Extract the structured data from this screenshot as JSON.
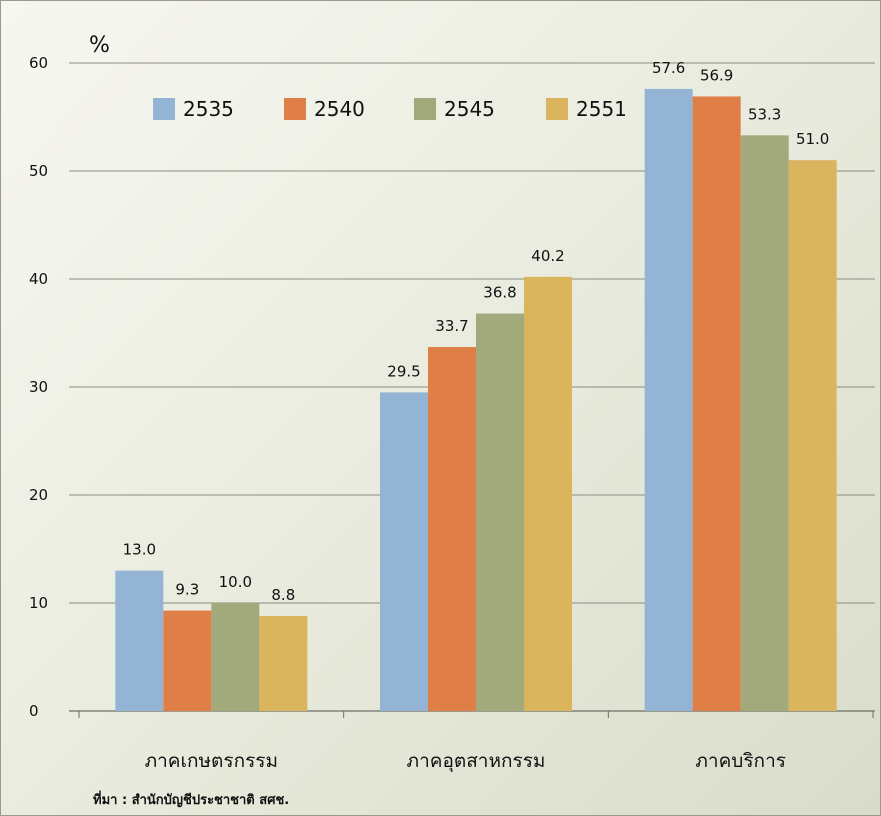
{
  "chart_data": {
    "type": "bar",
    "ylabel": "%",
    "ylim": [
      0,
      60
    ],
    "yticks": [
      0,
      10,
      20,
      30,
      40,
      50,
      60
    ],
    "categories": [
      "ภาคเกษตรกรรม",
      "ภาคอุตสาหกรรม",
      "ภาคบริการ"
    ],
    "series": [
      {
        "name": "2535",
        "color": "#94b4d6",
        "values": [
          13.0,
          29.5,
          57.6
        ],
        "labels": [
          "13.0",
          "29.5",
          "57.6"
        ]
      },
      {
        "name": "2540",
        "color": "#e07e48",
        "values": [
          9.3,
          33.7,
          56.9
        ],
        "labels": [
          "9.3",
          "33.7",
          "56.9"
        ]
      },
      {
        "name": "2545",
        "color": "#a2a97a",
        "values": [
          10.0,
          36.8,
          53.3
        ],
        "labels": [
          "10.0",
          "36.8",
          "53.3"
        ]
      },
      {
        "name": "2551",
        "color": "#dbb45e",
        "values": [
          8.8,
          40.2,
          51.0
        ],
        "labels": [
          "8.8",
          "40.2",
          "51.0"
        ]
      }
    ],
    "grid": true,
    "legend_position": "top",
    "source_note": "ที่มา : สำนักบัญชีประชาชาติ สศช."
  }
}
